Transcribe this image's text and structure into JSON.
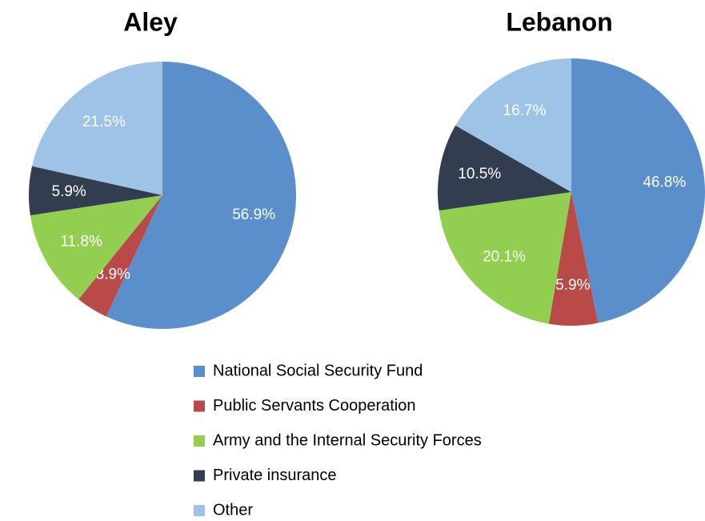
{
  "chart_data": {
    "type": "pie",
    "categories": [
      "National Social Security Fund",
      "Public Servants Cooperation",
      "Army and the Internal Security Forces",
      "Private insurance",
      "Other"
    ],
    "colors": [
      "#5b8fcb",
      "#b94a48",
      "#92cf51",
      "#333d50",
      "#9dc3e6"
    ],
    "series": [
      {
        "name": "Aley",
        "values": [
          56.9,
          3.9,
          11.8,
          5.9,
          21.5
        ],
        "value_labels": [
          "56.9%",
          "3.9%",
          "11.8%",
          "5.9%",
          "21.5%"
        ]
      },
      {
        "name": "Lebanon",
        "values": [
          46.8,
          5.9,
          20.1,
          10.5,
          16.7
        ],
        "value_labels": [
          "46.8%",
          "5.9%",
          "20.1%",
          "10.5%",
          "16.7%"
        ]
      }
    ]
  }
}
